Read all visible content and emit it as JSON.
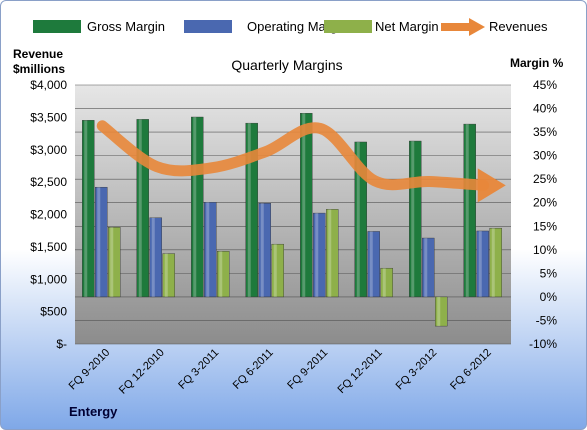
{
  "chart_data": {
    "type": "bar",
    "title": "Quarterly Margins",
    "left_axis_label_line1": "Revenue",
    "left_axis_label_line2": "$millions",
    "right_axis_label": "Margin %",
    "source_label": "Entergy",
    "categories": [
      "FQ 9-2010",
      "FQ 12-2010",
      "FQ 3-2011",
      "FQ 6-2011",
      "FQ 9-2011",
      "FQ 12-2011",
      "FQ 3-2012",
      "FQ 6-2012"
    ],
    "left_ticks": [
      "$-",
      "$500",
      "$1,000",
      "$1,500",
      "$2,000",
      "$2,500",
      "$3,000",
      "$3,500",
      "$4,000"
    ],
    "right_ticks": [
      "-10%",
      "-5%",
      "0%",
      "5%",
      "10%",
      "15%",
      "20%",
      "25%",
      "30%",
      "35%",
      "40%",
      "45%"
    ],
    "ylim_left": [
      0,
      4000
    ],
    "ylim_right": [
      -10,
      45
    ],
    "series": [
      {
        "name": "Gross Margin",
        "kind": "bar",
        "axis": "right",
        "color": "#1e7a3c",
        "values": [
          37.5,
          37.7,
          38.2,
          36.9,
          39.0,
          32.9,
          33.1,
          36.7
        ]
      },
      {
        "name": "Operating Margin",
        "kind": "bar",
        "axis": "right",
        "color": "#4a68b0",
        "values": [
          23.3,
          16.8,
          20.1,
          19.9,
          17.8,
          13.9,
          12.5,
          14.0
        ]
      },
      {
        "name": "Net Margin",
        "kind": "bar",
        "axis": "right",
        "color": "#8eb04a",
        "values": [
          14.8,
          9.2,
          9.7,
          11.2,
          18.6,
          6.1,
          -6.2,
          14.6
        ]
      },
      {
        "name": "Revenues",
        "kind": "line",
        "axis": "left",
        "color": "#e8873a",
        "values": [
          3370,
          2740,
          2720,
          2970,
          3330,
          2520,
          2510,
          2450
        ]
      }
    ],
    "legend_position": "top",
    "grid": true
  }
}
